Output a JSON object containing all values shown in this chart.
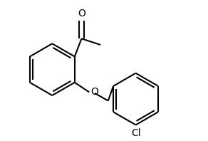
{
  "bg_color": "#ffffff",
  "line_color": "#000000",
  "line_width": 1.5,
  "font_size": 9.5,
  "figsize": [
    2.92,
    1.98
  ],
  "dpi": 100,
  "xlim": [
    -0.1,
    5.5
  ],
  "ylim": [
    0.5,
    4.5
  ]
}
